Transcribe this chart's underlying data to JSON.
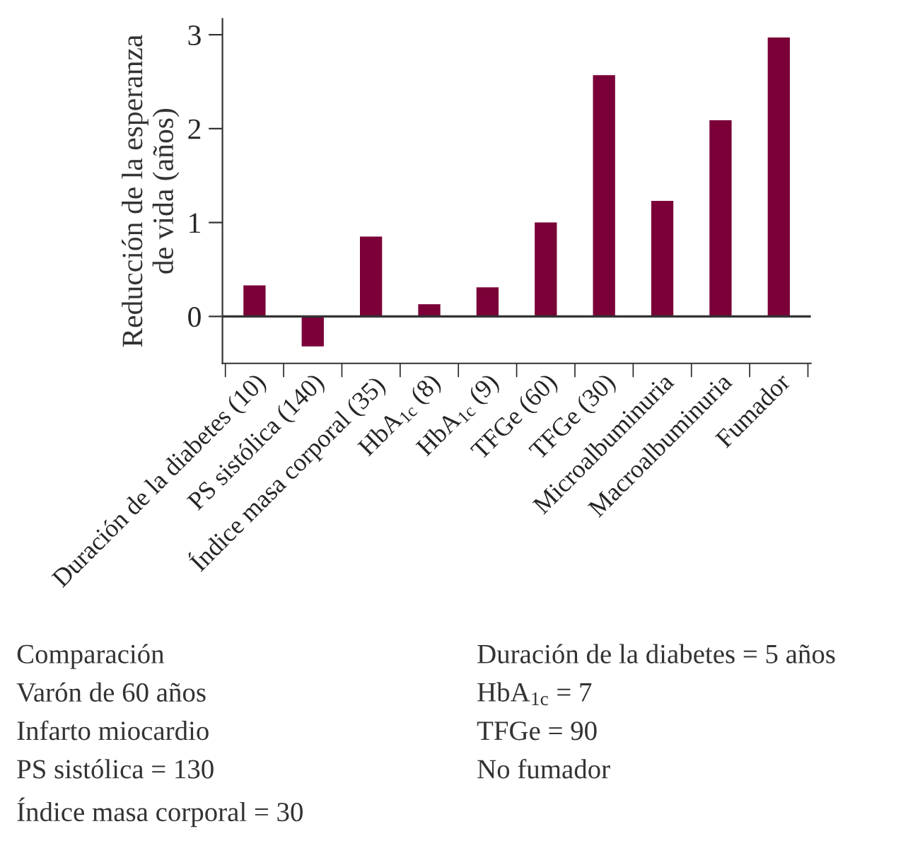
{
  "chart_data": {
    "type": "bar",
    "ylabel": "Reducción de la esperanza\nde vida (años)",
    "categories": [
      "Duración de la diabetes (10)",
      "PS sistólica (140)",
      "Índice masa corporal (35)",
      "HbA$_{1c}$ (8)",
      "HbA$_{1c}$ (9)",
      "TFGe (60)",
      "TFGe (30)",
      "Microalbuminuria",
      "Macroalbuminuria",
      "Fumador"
    ],
    "values": [
      0.33,
      -0.32,
      0.85,
      0.13,
      0.31,
      1.0,
      2.57,
      1.23,
      2.09,
      2.97
    ],
    "color": "#7a0037",
    "ylim": [
      -0.5,
      3.17
    ],
    "yticks": [
      0,
      1,
      2,
      3
    ],
    "ref_lines": [
      {
        "axis": "y",
        "value": 0,
        "label": null
      }
    ],
    "grid": false,
    "annotations": [
      "Comparación",
      "Varón de 60 años",
      "Infarto miocardio",
      "PS sistólica = 130",
      "Índice masa corporal = 30",
      "Duración de la diabetes = 5 años",
      "HbA$_{1c}$ = 7",
      "TFGe = 90",
      "No fumador"
    ]
  }
}
